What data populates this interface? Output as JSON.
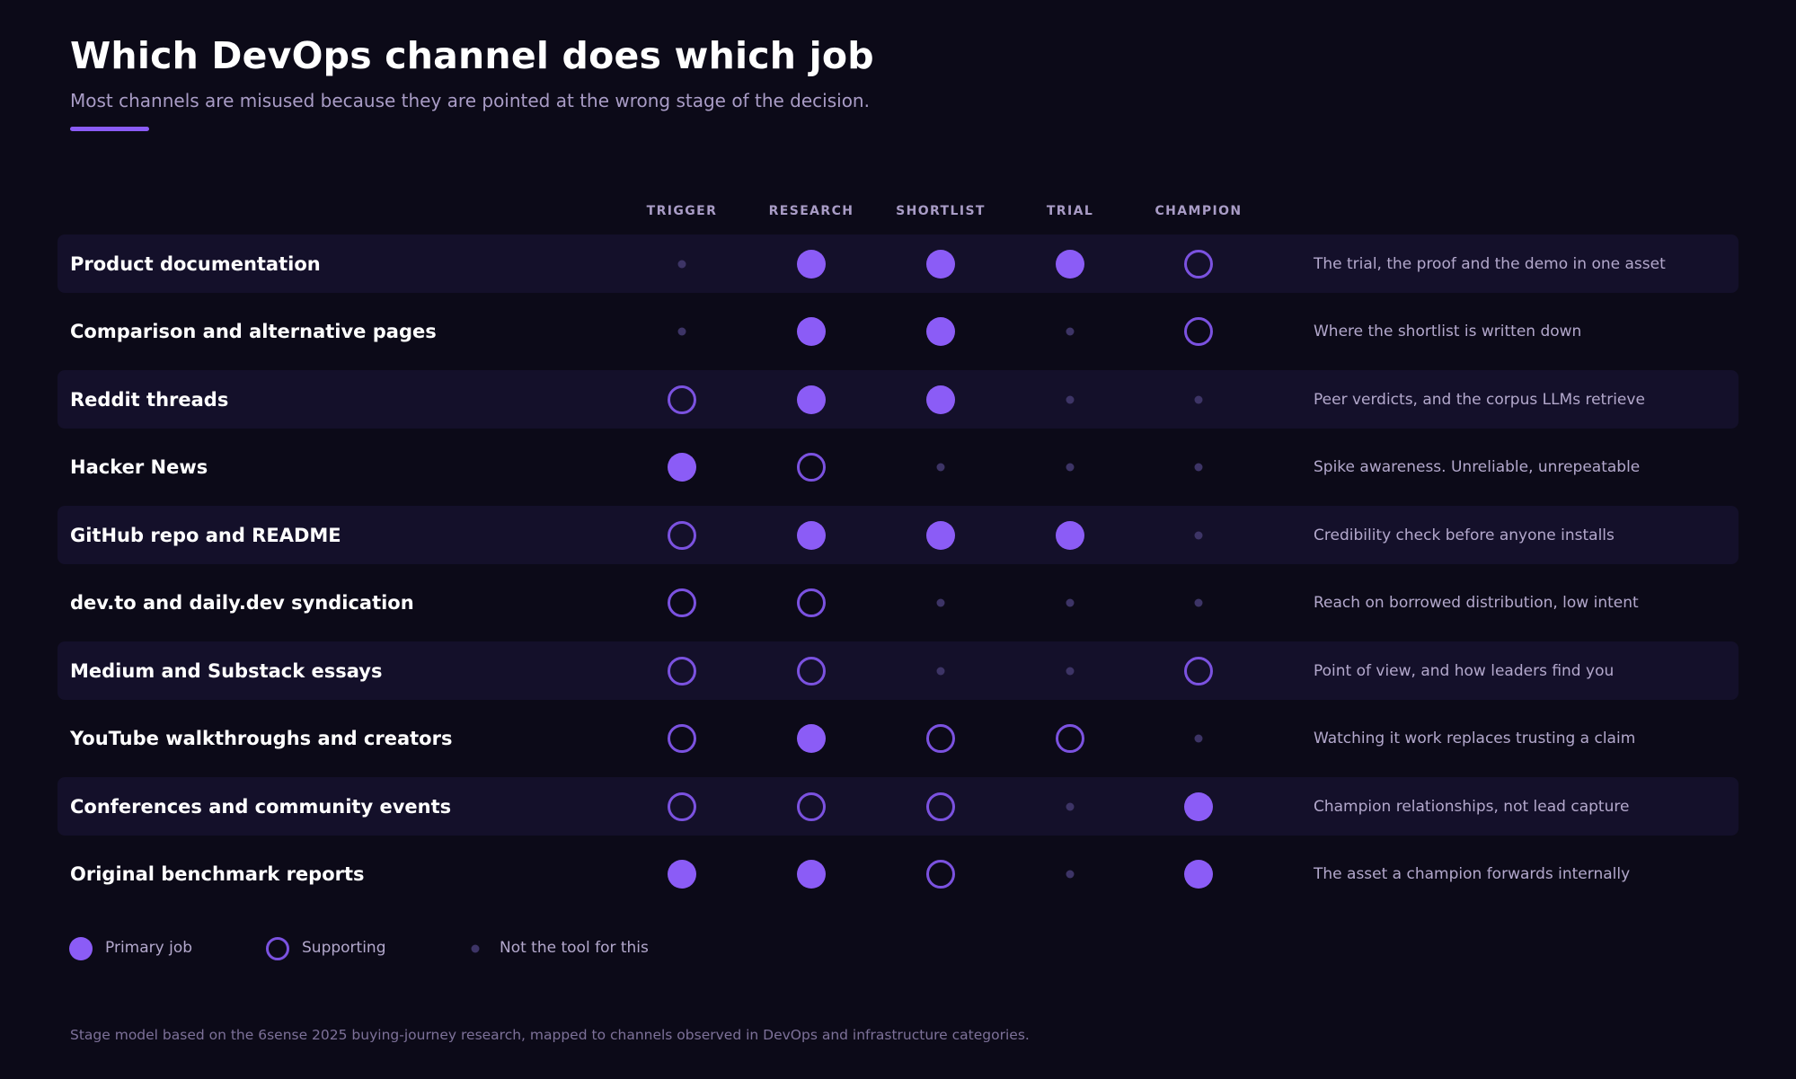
{
  "title": "Which DevOps channel does which job",
  "subtitle": "Most channels are misused because they are pointed at the wrong stage of the decision.",
  "colors": {
    "background": "#0c0a18",
    "accent": "#8b5cf6",
    "supporting_ring": "#7b52e0",
    "not_tool_dot": "#3d3466",
    "shaded_row": "#14102a"
  },
  "chart_data": {
    "type": "table",
    "columns": [
      "TRIGGER",
      "RESEARCH",
      "SHORTLIST",
      "TRIAL",
      "CHAMPION"
    ],
    "rows": [
      {
        "label": "Product documentation",
        "values": [
          "none",
          "primary",
          "primary",
          "primary",
          "supporting"
        ],
        "note": "The trial, the proof and the demo in one asset"
      },
      {
        "label": "Comparison and alternative pages",
        "values": [
          "none",
          "primary",
          "primary",
          "none",
          "supporting"
        ],
        "note": "Where the shortlist is written down"
      },
      {
        "label": "Reddit threads",
        "values": [
          "supporting",
          "primary",
          "primary",
          "none",
          "none"
        ],
        "note": "Peer verdicts, and the corpus LLMs retrieve"
      },
      {
        "label": "Hacker News",
        "values": [
          "primary",
          "supporting",
          "none",
          "none",
          "none"
        ],
        "note": "Spike awareness. Unreliable, unrepeatable"
      },
      {
        "label": "GitHub repo and README",
        "values": [
          "supporting",
          "primary",
          "primary",
          "primary",
          "none"
        ],
        "note": "Credibility check before anyone installs"
      },
      {
        "label": "dev.to and daily.dev syndication",
        "values": [
          "supporting",
          "supporting",
          "none",
          "none",
          "none"
        ],
        "note": "Reach on borrowed distribution, low intent"
      },
      {
        "label": "Medium and Substack essays",
        "values": [
          "supporting",
          "supporting",
          "none",
          "none",
          "supporting"
        ],
        "note": "Point of view, and how leaders find you"
      },
      {
        "label": "YouTube walkthroughs and creators",
        "values": [
          "supporting",
          "primary",
          "supporting",
          "supporting",
          "none"
        ],
        "note": "Watching it work replaces trusting a claim"
      },
      {
        "label": "Conferences and community events",
        "values": [
          "supporting",
          "supporting",
          "supporting",
          "none",
          "primary"
        ],
        "note": "Champion relationships, not lead capture"
      },
      {
        "label": "Original benchmark reports",
        "values": [
          "primary",
          "primary",
          "supporting",
          "none",
          "primary"
        ],
        "note": "The asset a champion forwards internally"
      }
    ],
    "legend": [
      {
        "key": "primary",
        "label": "Primary job"
      },
      {
        "key": "supporting",
        "label": "Supporting"
      },
      {
        "key": "none",
        "label": "Not the tool for this"
      }
    ],
    "legend_position": "bottom-left"
  },
  "footnote": "Stage model based on the 6sense 2025 buying-journey research, mapped to channels observed in DevOps and infrastructure categories."
}
